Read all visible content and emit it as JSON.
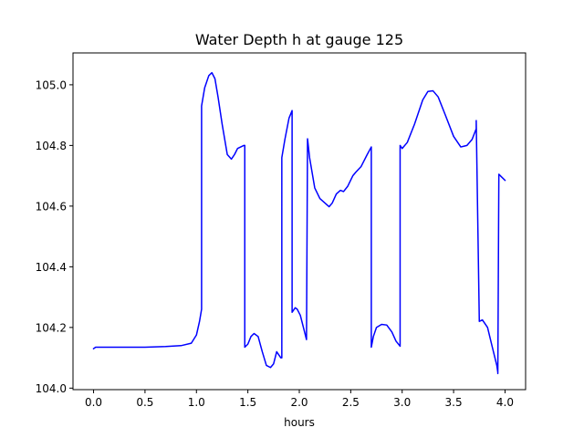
{
  "chart_data": {
    "type": "line",
    "title": "Water Depth h at gauge 125",
    "xlabel": "hours",
    "ylabel": "",
    "xlim": [
      -0.2,
      4.2
    ],
    "ylim": [
      103.995,
      105.105
    ],
    "xticks": [
      0.0,
      0.5,
      1.0,
      1.5,
      2.0,
      2.5,
      3.0,
      3.5,
      4.0
    ],
    "xtick_labels": [
      "0.0",
      "0.5",
      "1.0",
      "1.5",
      "2.0",
      "2.5",
      "3.0",
      "3.5",
      "4.0"
    ],
    "yticks": [
      104.0,
      104.2,
      104.4,
      104.6,
      104.8,
      105.0
    ],
    "ytick_labels": [
      "104.0",
      "104.2",
      "104.4",
      "104.6",
      "104.8",
      "105.0"
    ],
    "grid": false,
    "series": [
      {
        "color": "#0000ff",
        "x": [
          0.0,
          0.02,
          0.3,
          0.5,
          0.7,
          0.85,
          0.95,
          1.0,
          1.03,
          1.05,
          1.05,
          1.08,
          1.12,
          1.15,
          1.18,
          1.21,
          1.25,
          1.3,
          1.34,
          1.37,
          1.4,
          1.43,
          1.46,
          1.47,
          1.47,
          1.5,
          1.53,
          1.56,
          1.6,
          1.64,
          1.68,
          1.72,
          1.75,
          1.78,
          1.82,
          1.83,
          1.83,
          1.86,
          1.9,
          1.93,
          1.93,
          1.94,
          1.96,
          1.98,
          2.01,
          2.04,
          2.07,
          2.07,
          2.08,
          2.1,
          2.15,
          2.2,
          2.25,
          2.29,
          2.32,
          2.36,
          2.4,
          2.43,
          2.47,
          2.52,
          2.55,
          2.6,
          2.66,
          2.7,
          2.7,
          2.72,
          2.75,
          2.8,
          2.85,
          2.9,
          2.94,
          2.98,
          2.98,
          3.0,
          3.05,
          3.12,
          3.2,
          3.25,
          3.3,
          3.35,
          3.42,
          3.5,
          3.57,
          3.63,
          3.68,
          3.72,
          3.72,
          3.75,
          3.78,
          3.83,
          3.88,
          3.92,
          3.93,
          3.93,
          3.94,
          3.97,
          4.0
        ],
        "y": [
          104.13,
          104.135,
          104.135,
          104.135,
          104.137,
          104.14,
          104.148,
          104.175,
          104.22,
          104.26,
          104.93,
          104.99,
          105.03,
          105.04,
          105.02,
          104.96,
          104.87,
          104.77,
          104.755,
          104.77,
          104.79,
          104.795,
          104.8,
          104.8,
          104.135,
          104.145,
          104.17,
          104.18,
          104.17,
          104.12,
          104.075,
          104.068,
          104.08,
          104.12,
          104.1,
          104.1,
          104.76,
          104.82,
          104.89,
          104.915,
          104.25,
          104.255,
          104.265,
          104.26,
          104.24,
          104.2,
          104.16,
          104.16,
          104.822,
          104.76,
          104.66,
          104.625,
          104.61,
          104.598,
          104.61,
          104.64,
          104.652,
          104.648,
          104.665,
          104.7,
          104.712,
          104.73,
          104.77,
          104.795,
          104.135,
          104.17,
          104.2,
          104.21,
          104.208,
          104.185,
          104.155,
          104.138,
          104.8,
          104.79,
          104.81,
          104.87,
          104.95,
          104.978,
          104.98,
          104.96,
          104.9,
          104.83,
          104.795,
          104.8,
          104.82,
          104.855,
          104.882,
          104.22,
          104.225,
          104.2,
          104.13,
          104.075,
          104.052,
          104.048,
          104.705,
          104.695,
          104.685
        ]
      }
    ]
  }
}
